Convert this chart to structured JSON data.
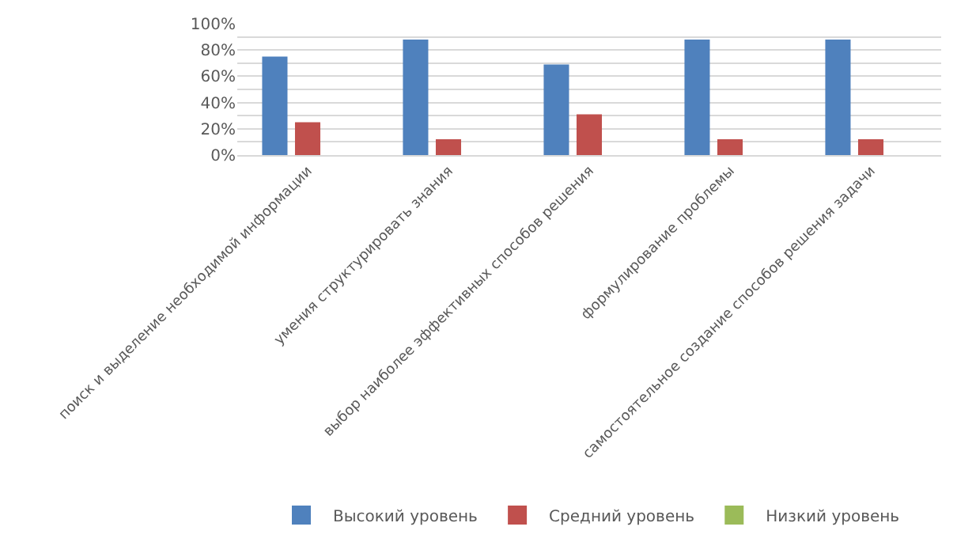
{
  "chart_data": {
    "type": "bar",
    "categories": [
      "поиск и выделение необходимой информации",
      "умения структурировать знания",
      "выбор наиболее эффективных способов решения",
      "формулирование проблемы",
      "самостоятельное создание способов решения задачи"
    ],
    "series": [
      {
        "name": "Высокий уровень",
        "color": "#4f81bd",
        "values": [
          75,
          88,
          69,
          88,
          88
        ]
      },
      {
        "name": "Средний уровень",
        "color": "#c0504d",
        "values": [
          25,
          12,
          31,
          12,
          12
        ]
      },
      {
        "name": "Низкий уровень",
        "color": "#9bbb59",
        "values": [
          0,
          0,
          0,
          0,
          0
        ]
      }
    ],
    "ylim": [
      0,
      100
    ],
    "yticks": [
      {
        "value": 0,
        "label": "0%"
      },
      {
        "value": 10,
        "label": null
      },
      {
        "value": 20,
        "label": "20%"
      },
      {
        "value": 30,
        "label": null
      },
      {
        "value": 40,
        "label": "40%"
      },
      {
        "value": 50,
        "label": null
      },
      {
        "value": 60,
        "label": "60%"
      },
      {
        "value": 70,
        "label": null
      },
      {
        "value": 80,
        "label": "80%"
      },
      {
        "value": 90,
        "label": null
      },
      {
        "value": 100,
        "label": "100%"
      }
    ],
    "grid": "y",
    "legend": "bottom"
  }
}
